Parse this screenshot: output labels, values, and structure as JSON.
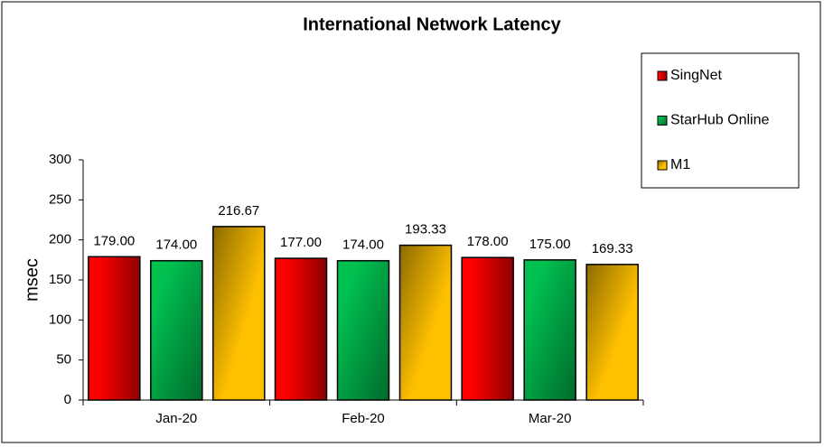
{
  "chart_data": {
    "type": "bar",
    "title": "International Network Latency",
    "y_label": "msec",
    "categories": [
      "Jan-20",
      "Feb-20",
      "Mar-20"
    ],
    "series": [
      {
        "name": "SingNet",
        "color": "#ff0000",
        "values": [
          179,
          177,
          178
        ],
        "value_labels": [
          "179.00",
          "177.00",
          "178.00"
        ]
      },
      {
        "name": "StarHub Online",
        "color": "#00c050",
        "values": [
          174,
          174,
          175
        ],
        "value_labels": [
          "174.00",
          "174.00",
          "175.00"
        ]
      },
      {
        "name": "M1",
        "color": "#ffc000",
        "values": [
          216.67,
          193.33,
          169.33
        ],
        "value_labels": [
          "216.67",
          "193.33",
          "169.33"
        ]
      }
    ],
    "ylim": [
      0,
      300
    ],
    "yticks": [
      0,
      50,
      100,
      150,
      200,
      250,
      300
    ],
    "grid": false,
    "legend": "right"
  }
}
